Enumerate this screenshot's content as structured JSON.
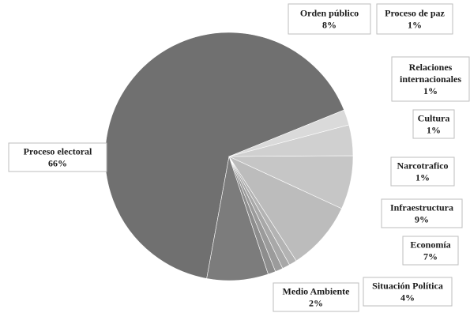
{
  "chart_data": {
    "type": "pie",
    "title": "",
    "slices": [
      {
        "label": "Proceso electoral",
        "value": 66,
        "value_label": "66%",
        "color": "#707070"
      },
      {
        "label": "Orden público",
        "value": 8,
        "value_label": "8%",
        "color": "#7c7c7c"
      },
      {
        "label": "Proceso de paz",
        "value": 1,
        "value_label": "1%",
        "color": "#8d8d8d"
      },
      {
        "label": "Relaciones internacionales",
        "value": 1,
        "value_label": "1%",
        "color": "#9b9b9b"
      },
      {
        "label": "Cultura",
        "value": 1,
        "value_label": "1%",
        "color": "#a8a8a8"
      },
      {
        "label": "Narcotrafico",
        "value": 1,
        "value_label": "1%",
        "color": "#b3b3b3"
      },
      {
        "label": "Infraestructura",
        "value": 9,
        "value_label": "9%",
        "color": "#bcbcbc"
      },
      {
        "label": "Economía",
        "value": 7,
        "value_label": "7%",
        "color": "#c6c6c6"
      },
      {
        "label": "Situación Política",
        "value": 4,
        "value_label": "4%",
        "color": "#d0d0d0"
      },
      {
        "label": "Medio Ambiente",
        "value": 2,
        "value_label": "2%",
        "color": "#dadada"
      }
    ]
  }
}
